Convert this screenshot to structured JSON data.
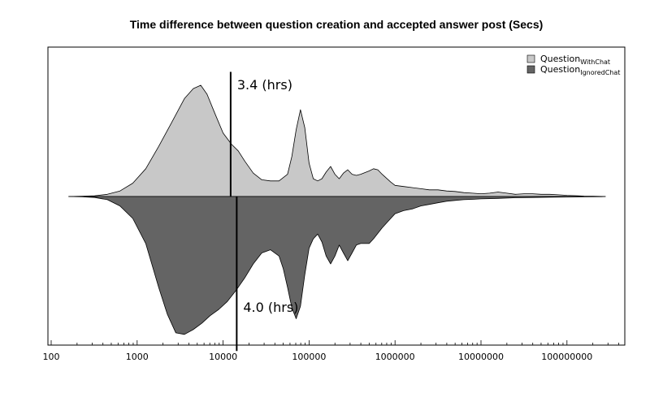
{
  "chart_data": {
    "type": "area",
    "subtype": "mirrored-density",
    "title": "Time difference between question creation and accepted answer post (Secs)",
    "xlabel": "",
    "ylabel": "",
    "xscale": "log10",
    "xlim": [
      100,
      500000000
    ],
    "ylim": [
      -1.05,
      1.05
    ],
    "x_tick_labels": [
      "100",
      "1000",
      "10000",
      "100000",
      "1000000",
      "10000000",
      "100000000"
    ],
    "x_tick_values": [
      100,
      1000,
      10000,
      100000,
      1000000,
      10000000,
      100000000
    ],
    "grid": false,
    "legend_position": "top-right",
    "series": [
      {
        "name": "Question",
        "subscript": "WithChat",
        "color": "#c8c8c8",
        "direction": "up",
        "points": [
          [
            160,
            0
          ],
          [
            230,
            0.002
          ],
          [
            320,
            0.006
          ],
          [
            450,
            0.02
          ],
          [
            630,
            0.05
          ],
          [
            890,
            0.12
          ],
          [
            1260,
            0.25
          ],
          [
            1780,
            0.45
          ],
          [
            2500,
            0.66
          ],
          [
            3550,
            0.88
          ],
          [
            4500,
            0.97
          ],
          [
            5500,
            1.0
          ],
          [
            6500,
            0.92
          ],
          [
            8000,
            0.75
          ],
          [
            10000,
            0.57
          ],
          [
            12500,
            0.47
          ],
          [
            15000,
            0.41
          ],
          [
            17800,
            0.32
          ],
          [
            22400,
            0.21
          ],
          [
            28200,
            0.15
          ],
          [
            35500,
            0.14
          ],
          [
            44700,
            0.14
          ],
          [
            56200,
            0.2
          ],
          [
            63000,
            0.36
          ],
          [
            70800,
            0.6
          ],
          [
            79400,
            0.78
          ],
          [
            89100,
            0.62
          ],
          [
            100000,
            0.3
          ],
          [
            112000,
            0.16
          ],
          [
            126000,
            0.14
          ],
          [
            141000,
            0.16
          ],
          [
            158000,
            0.22
          ],
          [
            178000,
            0.27
          ],
          [
            200000,
            0.2
          ],
          [
            224000,
            0.16
          ],
          [
            251000,
            0.21
          ],
          [
            282000,
            0.24
          ],
          [
            316000,
            0.2
          ],
          [
            355000,
            0.19
          ],
          [
            398000,
            0.2
          ],
          [
            501000,
            0.23
          ],
          [
            562000,
            0.25
          ],
          [
            631000,
            0.24
          ],
          [
            708000,
            0.2
          ],
          [
            891000,
            0.13
          ],
          [
            1000000,
            0.1
          ],
          [
            1260000,
            0.09
          ],
          [
            1580000,
            0.08
          ],
          [
            2000000,
            0.07
          ],
          [
            2510000,
            0.06
          ],
          [
            3160000,
            0.06
          ],
          [
            3980000,
            0.05
          ],
          [
            5010000,
            0.045
          ],
          [
            6310000,
            0.035
          ],
          [
            7940000,
            0.03
          ],
          [
            10000000,
            0.025
          ],
          [
            12600000,
            0.03
          ],
          [
            15800000,
            0.04
          ],
          [
            20000000,
            0.03
          ],
          [
            25100000,
            0.02
          ],
          [
            31600000,
            0.025
          ],
          [
            39800000,
            0.025
          ],
          [
            50100000,
            0.02
          ],
          [
            63100000,
            0.02
          ],
          [
            79400000,
            0.015
          ],
          [
            100000000,
            0.01
          ],
          [
            126000000,
            0.007
          ],
          [
            158000000,
            0.004
          ],
          [
            200000000,
            0.002
          ],
          [
            251000000,
            0.001
          ],
          [
            280000000,
            0
          ]
        ]
      },
      {
        "name": "Question",
        "subscript": "IgnoredChat",
        "color": "#646464",
        "direction": "down",
        "points": [
          [
            160,
            0
          ],
          [
            230,
            0.002
          ],
          [
            320,
            0.006
          ],
          [
            450,
            0.02
          ],
          [
            630,
            0.06
          ],
          [
            890,
            0.14
          ],
          [
            1260,
            0.3
          ],
          [
            1780,
            0.58
          ],
          [
            2240,
            0.75
          ],
          [
            2820,
            0.87
          ],
          [
            3550,
            0.88
          ],
          [
            4470,
            0.85
          ],
          [
            5620,
            0.81
          ],
          [
            7080,
            0.76
          ],
          [
            8910,
            0.72
          ],
          [
            11200,
            0.67
          ],
          [
            14100,
            0.6
          ],
          [
            17800,
            0.52
          ],
          [
            22400,
            0.43
          ],
          [
            28200,
            0.36
          ],
          [
            35500,
            0.34
          ],
          [
            44700,
            0.38
          ],
          [
            50100,
            0.46
          ],
          [
            56200,
            0.58
          ],
          [
            63100,
            0.71
          ],
          [
            70800,
            0.78
          ],
          [
            79400,
            0.7
          ],
          [
            89100,
            0.5
          ],
          [
            100000,
            0.33
          ],
          [
            112000,
            0.27
          ],
          [
            126000,
            0.24
          ],
          [
            141000,
            0.29
          ],
          [
            158000,
            0.38
          ],
          [
            178000,
            0.43
          ],
          [
            200000,
            0.38
          ],
          [
            224000,
            0.31
          ],
          [
            251000,
            0.36
          ],
          [
            282000,
            0.41
          ],
          [
            316000,
            0.36
          ],
          [
            355000,
            0.31
          ],
          [
            398000,
            0.3
          ],
          [
            447000,
            0.3
          ],
          [
            501000,
            0.3
          ],
          [
            562000,
            0.27
          ],
          [
            708000,
            0.2
          ],
          [
            891000,
            0.14
          ],
          [
            1000000,
            0.11
          ],
          [
            1260000,
            0.09
          ],
          [
            1580000,
            0.08
          ],
          [
            2000000,
            0.06
          ],
          [
            2510000,
            0.05
          ],
          [
            3160000,
            0.04
          ],
          [
            3980000,
            0.03
          ],
          [
            5010000,
            0.025
          ],
          [
            6310000,
            0.02
          ],
          [
            7940000,
            0.018
          ],
          [
            10000000,
            0.015
          ],
          [
            15800000,
            0.012
          ],
          [
            25100000,
            0.008
          ],
          [
            39800000,
            0.006
          ],
          [
            63100000,
            0.004
          ],
          [
            100000000,
            0.003
          ],
          [
            158000000,
            0.002
          ],
          [
            251000000,
            0.001
          ],
          [
            280000000,
            0
          ]
        ]
      }
    ],
    "annotations": [
      {
        "text": "3.4 (hrs)",
        "x": 12240,
        "y_from": 0,
        "y_to": 1.12,
        "direction": "up"
      },
      {
        "text": "4.0 (hrs)",
        "x": 14400,
        "y_from": 0,
        "y_to": -1.12,
        "direction": "down"
      }
    ],
    "legend": [
      {
        "name": "Question",
        "subscript": "WithChat",
        "color": "#c8c8c8"
      },
      {
        "name": "Question",
        "subscript": "IgnoredChat",
        "color": "#646464"
      }
    ]
  }
}
